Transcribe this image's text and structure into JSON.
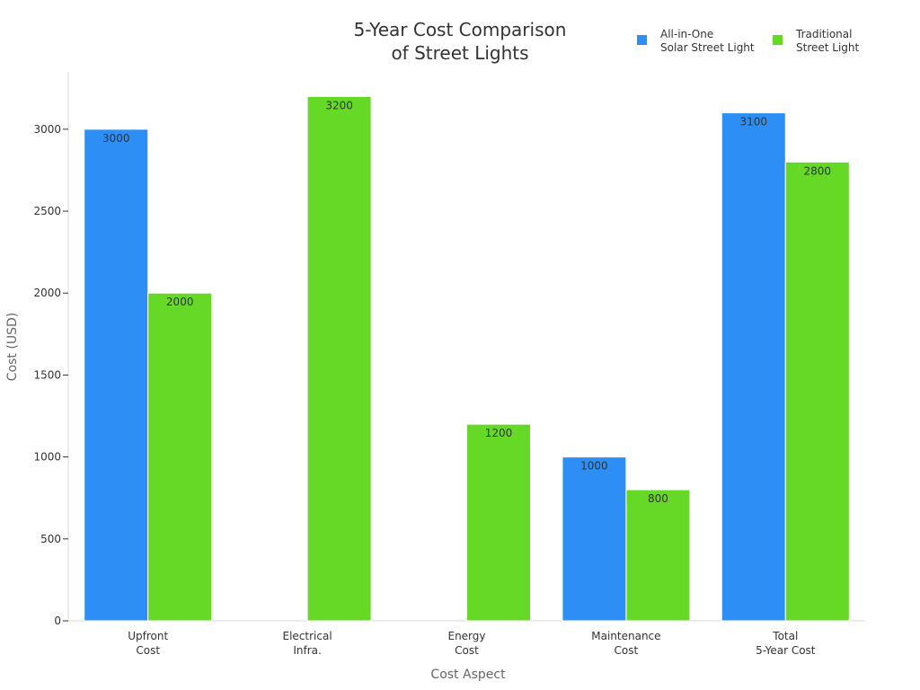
{
  "chart_data": {
    "type": "bar",
    "title": [
      "5-Year Cost Comparison",
      "of Street Lights"
    ],
    "xlabel": "Cost Aspect",
    "ylabel": "Cost (USD)",
    "ylim": [
      0,
      3350
    ],
    "yticks": [
      0,
      500,
      1000,
      1500,
      2000,
      2500,
      3000
    ],
    "categories": [
      [
        "Upfront",
        "Cost"
      ],
      [
        "Electrical",
        "Infra."
      ],
      [
        "Energy",
        "Cost"
      ],
      [
        "Maintenance",
        "Cost"
      ],
      [
        "Total",
        "5-Year Cost"
      ]
    ],
    "series": [
      {
        "name": [
          "All-in-One",
          "Solar Street Light"
        ],
        "color": "#2d8ff6",
        "values": [
          3000,
          0,
          0,
          1000,
          3100
        ]
      },
      {
        "name": [
          "Traditional",
          "Street Light"
        ],
        "color": "#66d927",
        "values": [
          2000,
          3200,
          1200,
          800,
          2800
        ]
      }
    ],
    "legend_position": "top-right",
    "grid": false
  }
}
